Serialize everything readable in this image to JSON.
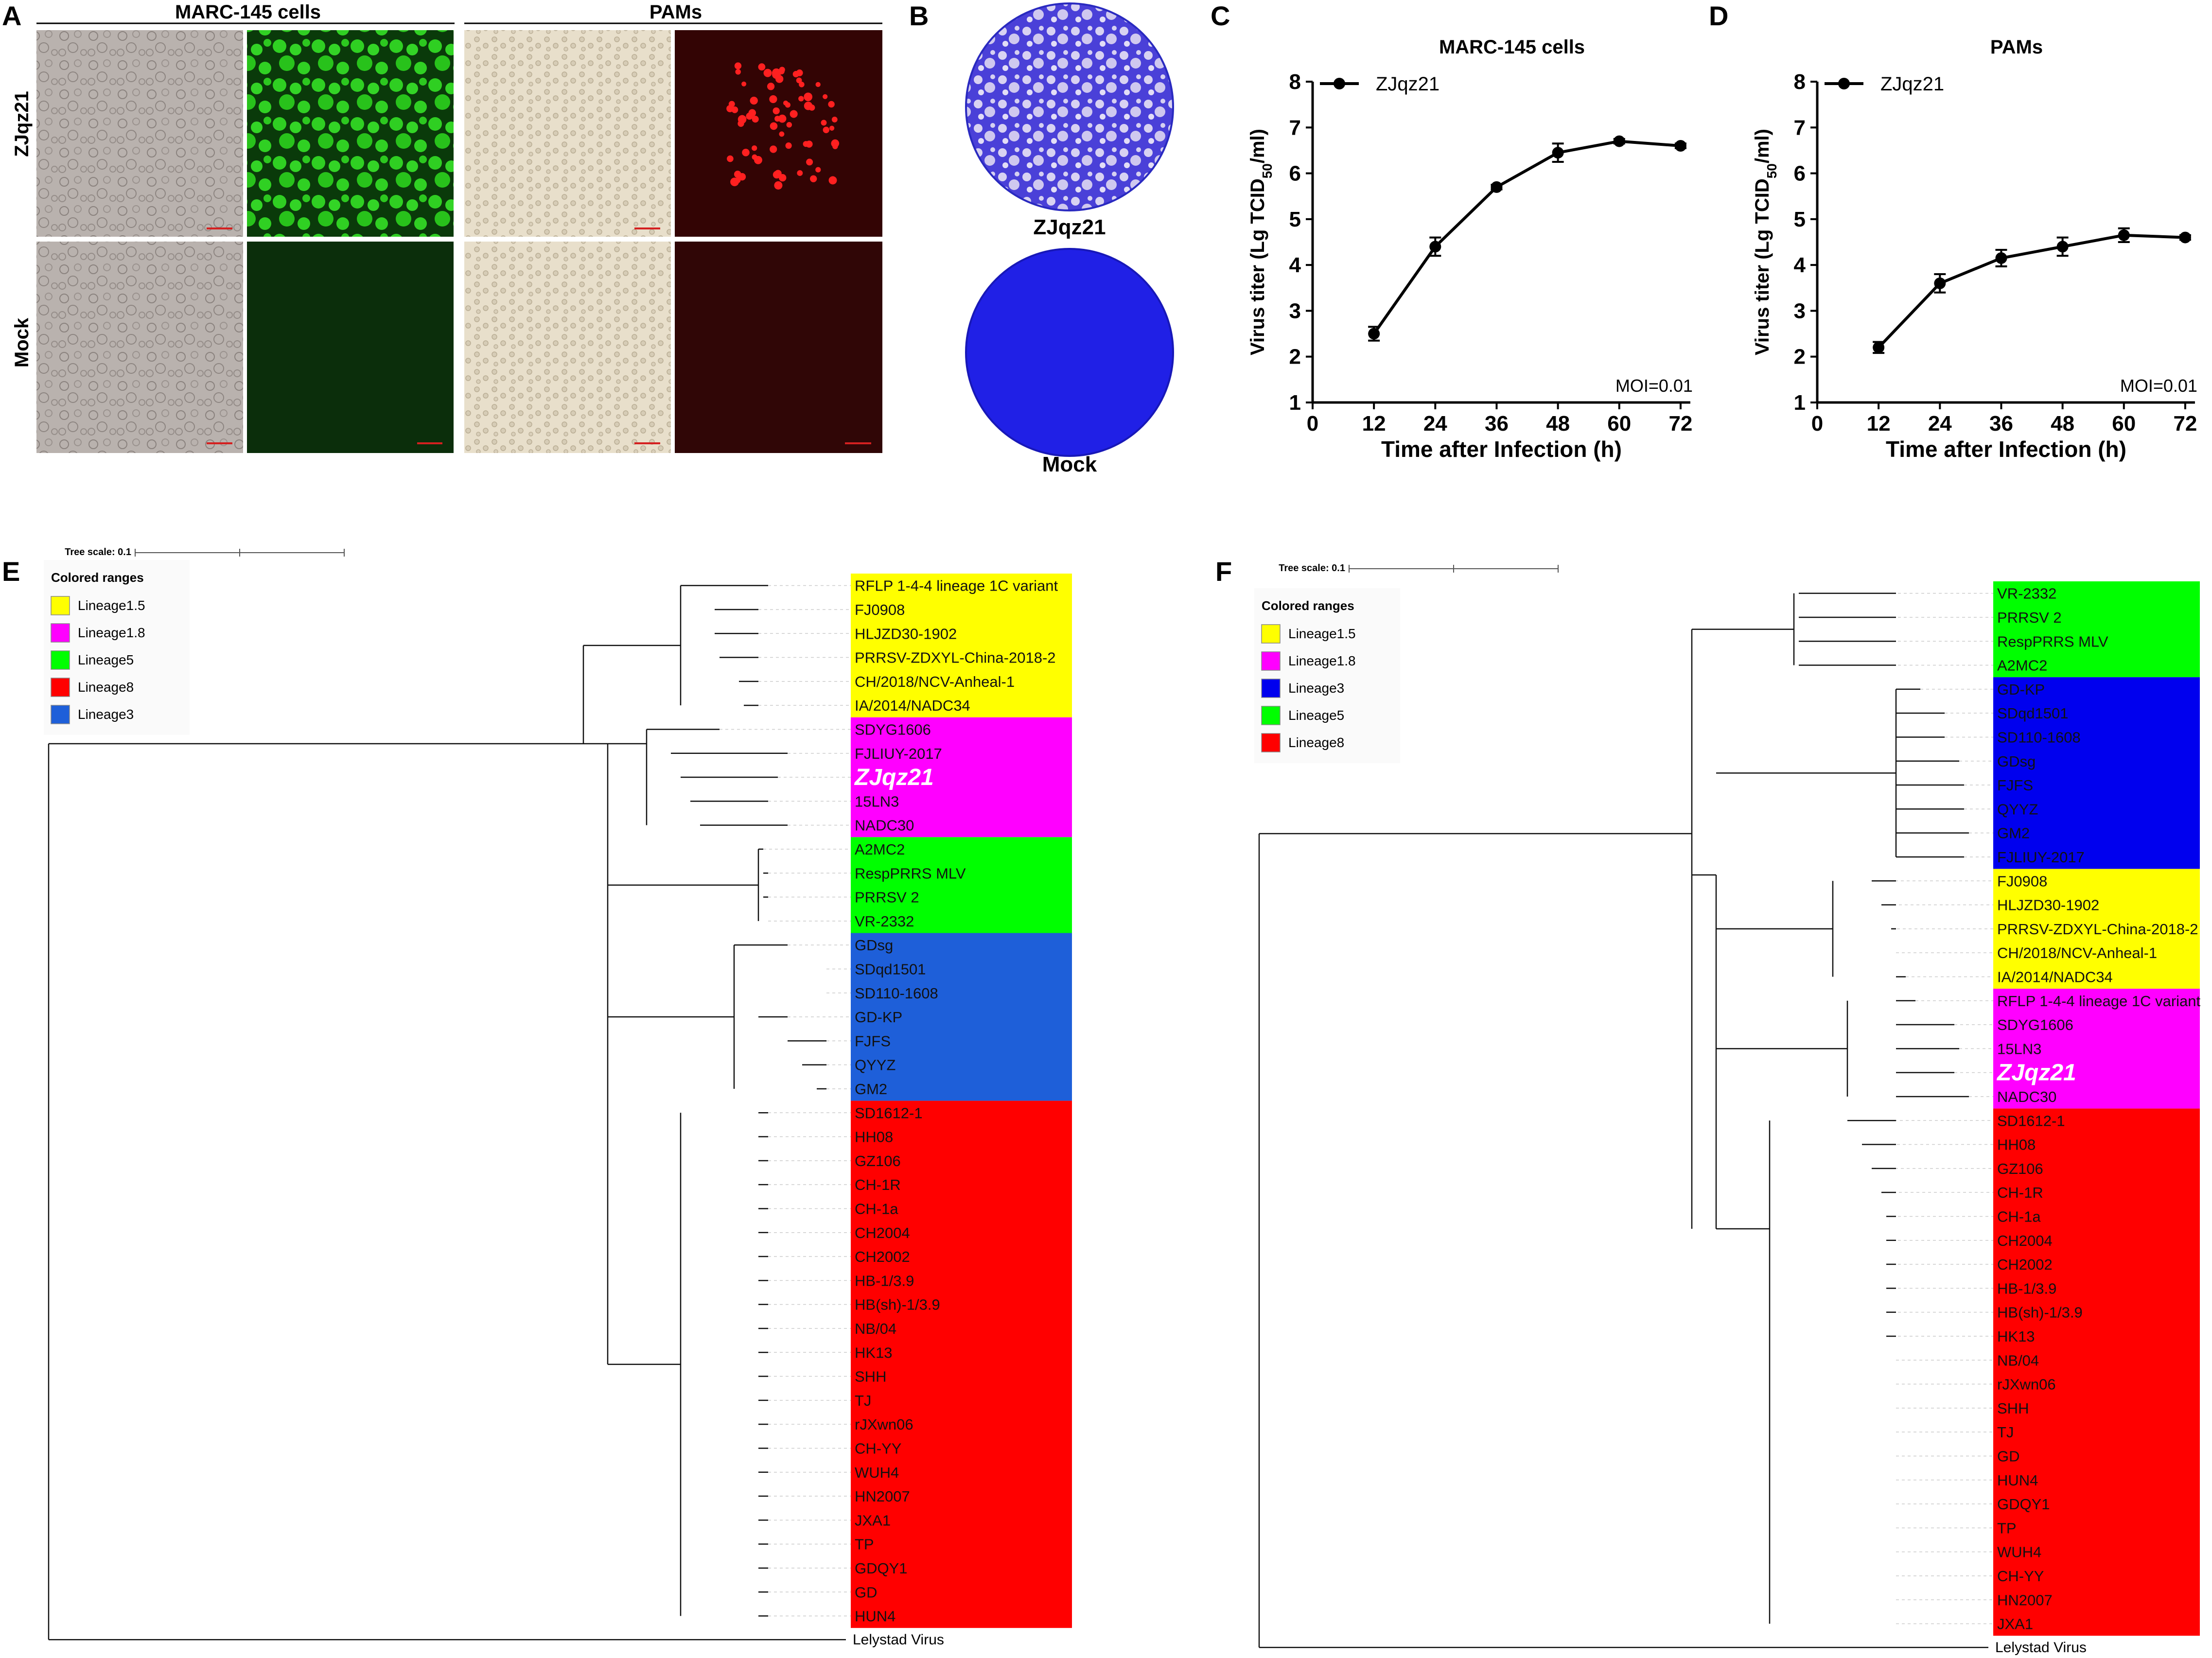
{
  "panels": {
    "A": {
      "label": "A",
      "group_headers": [
        "MARC-145 cells",
        "PAMs"
      ],
      "row_labels": [
        "ZJqz21",
        "Mock"
      ]
    },
    "B": {
      "label": "B",
      "dish_labels": [
        "ZJqz21",
        "Mock"
      ]
    },
    "C": {
      "label": "C"
    },
    "D": {
      "label": "D"
    },
    "E": {
      "label": "E",
      "tree_scale": "Tree scale: 0.1",
      "legend_title": "Colored ranges"
    },
    "F": {
      "label": "F",
      "tree_scale": "Tree scale: 0.1",
      "legend_title": "Colored ranges"
    }
  },
  "colors": {
    "Lineage1.5": "#ffff00",
    "Lineage1.8": "#ff00ff",
    "Lineage5": "#00ff00",
    "Lineage8": "#ff0000",
    "Lineage3_E": "#1e5fd9",
    "Lineage3_F": "#0000ee",
    "green_fluor": "#27c61a",
    "red_fluor": "#ff2020",
    "crystal_violet": "#2a2ae0"
  },
  "chart_data": [
    {
      "type": "line",
      "title": "MARC-145 cells",
      "xlabel": "Time after Infection (h)",
      "ylabel": "Virus titer (Lg TCID50/ml)",
      "x_ticks": [
        0,
        12,
        24,
        36,
        48,
        60,
        72
      ],
      "y_ticks": [
        1,
        2,
        3,
        4,
        5,
        6,
        7,
        8
      ],
      "xlim": [
        0,
        78
      ],
      "ylim": [
        1,
        8
      ],
      "series": [
        {
          "name": "ZJqz21",
          "x": [
            12,
            24,
            36,
            48,
            60,
            72
          ],
          "y": [
            2.5,
            4.4,
            5.7,
            6.45,
            6.7,
            6.6
          ],
          "err": [
            0.15,
            0.2,
            0.05,
            0.2,
            0.05,
            0.05
          ]
        }
      ],
      "annotation": "MOI=0.01",
      "legend": "top-left"
    },
    {
      "type": "line",
      "title": "PAMs",
      "xlabel": "Time after Infection (h)",
      "ylabel": "Virus titer (Lg TCID50/ml)",
      "x_ticks": [
        0,
        12,
        24,
        36,
        48,
        60,
        72
      ],
      "y_ticks": [
        1,
        2,
        3,
        4,
        5,
        6,
        7,
        8
      ],
      "xlim": [
        0,
        78
      ],
      "ylim": [
        1,
        8
      ],
      "series": [
        {
          "name": "ZJqz21",
          "x": [
            12,
            24,
            36,
            48,
            60,
            72
          ],
          "y": [
            2.2,
            3.6,
            4.15,
            4.4,
            4.65,
            4.6
          ],
          "err": [
            0.12,
            0.2,
            0.18,
            0.2,
            0.15,
            0.05
          ]
        }
      ],
      "annotation": "MOI=0.01",
      "legend": "top-left"
    }
  ],
  "tree_E": {
    "legend": [
      {
        "name": "Lineage1.5",
        "color": "#ffff00"
      },
      {
        "name": "Lineage1.8",
        "color": "#ff00ff"
      },
      {
        "name": "Lineage5",
        "color": "#00ff00"
      },
      {
        "name": "Lineage8",
        "color": "#ff0000"
      },
      {
        "name": "Lineage3",
        "color": "#1e5fd9"
      }
    ],
    "groups": [
      {
        "lineage": "Lineage1.5",
        "color": "#ffff00",
        "taxa": [
          "RFLP 1-4-4 lineage 1C variant",
          "FJ0908",
          "HLJZD30-1902",
          "PRRSV-ZDXYL-China-2018-2",
          "CH/2018/NCV-Anheal-1",
          "IA/2014/NADC34"
        ]
      },
      {
        "lineage": "Lineage1.8",
        "color": "#ff00ff",
        "taxa": [
          "SDYG1606",
          "FJLIUY-2017",
          "ZJqz21",
          "15LN3",
          "NADC30"
        ]
      },
      {
        "lineage": "Lineage5",
        "color": "#00ff00",
        "taxa": [
          "A2MC2",
          "RespPRRS MLV",
          "PRRSV 2",
          "VR-2332"
        ]
      },
      {
        "lineage": "Lineage3",
        "color": "#1e5fd9",
        "taxa": [
          "GDsg",
          "SDqd1501",
          "SD110-1608",
          "GD-KP",
          "FJFS",
          "QYYZ",
          "GM2"
        ]
      },
      {
        "lineage": "Lineage8",
        "color": "#ff0000",
        "taxa": [
          "SD1612-1",
          "HH08",
          "GZ106",
          "CH-1R",
          "CH-1a",
          "CH2004",
          "CH2002",
          "HB-1/3.9",
          "HB(sh)-1/3.9",
          "NB/04",
          "HK13",
          "SHH",
          "TJ",
          "rJXwn06",
          "CH-YY",
          "WUH4",
          "HN2007",
          "JXA1",
          "TP",
          "GDQY1",
          "GD",
          "HUN4"
        ]
      }
    ],
    "outgroup": "Lelystad Virus"
  },
  "tree_F": {
    "legend": [
      {
        "name": "Lineage1.5",
        "color": "#ffff00"
      },
      {
        "name": "Lineage1.8",
        "color": "#ff00ff"
      },
      {
        "name": "Lineage3",
        "color": "#0000ee"
      },
      {
        "name": "Lineage5",
        "color": "#00ff00"
      },
      {
        "name": "Lineage8",
        "color": "#ff0000"
      }
    ],
    "groups": [
      {
        "lineage": "Lineage5",
        "color": "#00ff00",
        "taxa": [
          "VR-2332",
          "PRRSV 2",
          "RespPRRS MLV",
          "A2MC2"
        ]
      },
      {
        "lineage": "Lineage3",
        "color": "#0000ee",
        "taxa": [
          "GD-KP",
          "SDqd1501",
          "SD110-1608",
          "GDsg",
          "FJFS",
          "QYYZ",
          "GM2",
          "FJLIUY-2017"
        ]
      },
      {
        "lineage": "Lineage1.5",
        "color": "#ffff00",
        "taxa": [
          "FJ0908",
          "HLJZD30-1902",
          "PRRSV-ZDXYL-China-2018-2",
          "CH/2018/NCV-Anheal-1",
          "IA/2014/NADC34"
        ]
      },
      {
        "lineage": "Lineage1.8",
        "color": "#ff00ff",
        "taxa": [
          "RFLP 1-4-4 lineage 1C variant",
          "SDYG1606",
          "15LN3",
          "ZJqz21",
          "NADC30"
        ]
      },
      {
        "lineage": "Lineage8",
        "color": "#ff0000",
        "taxa": [
          "SD1612-1",
          "HH08",
          "GZ106",
          "CH-1R",
          "CH-1a",
          "CH2004",
          "CH2002",
          "HB-1/3.9",
          "HB(sh)-1/3.9",
          "HK13",
          "NB/04",
          "rJXwn06",
          "SHH",
          "TJ",
          "GD",
          "HUN4",
          "GDQY1",
          "TP",
          "WUH4",
          "CH-YY",
          "HN2007",
          "JXA1"
        ]
      }
    ],
    "outgroup": "Lelystad Virus"
  }
}
